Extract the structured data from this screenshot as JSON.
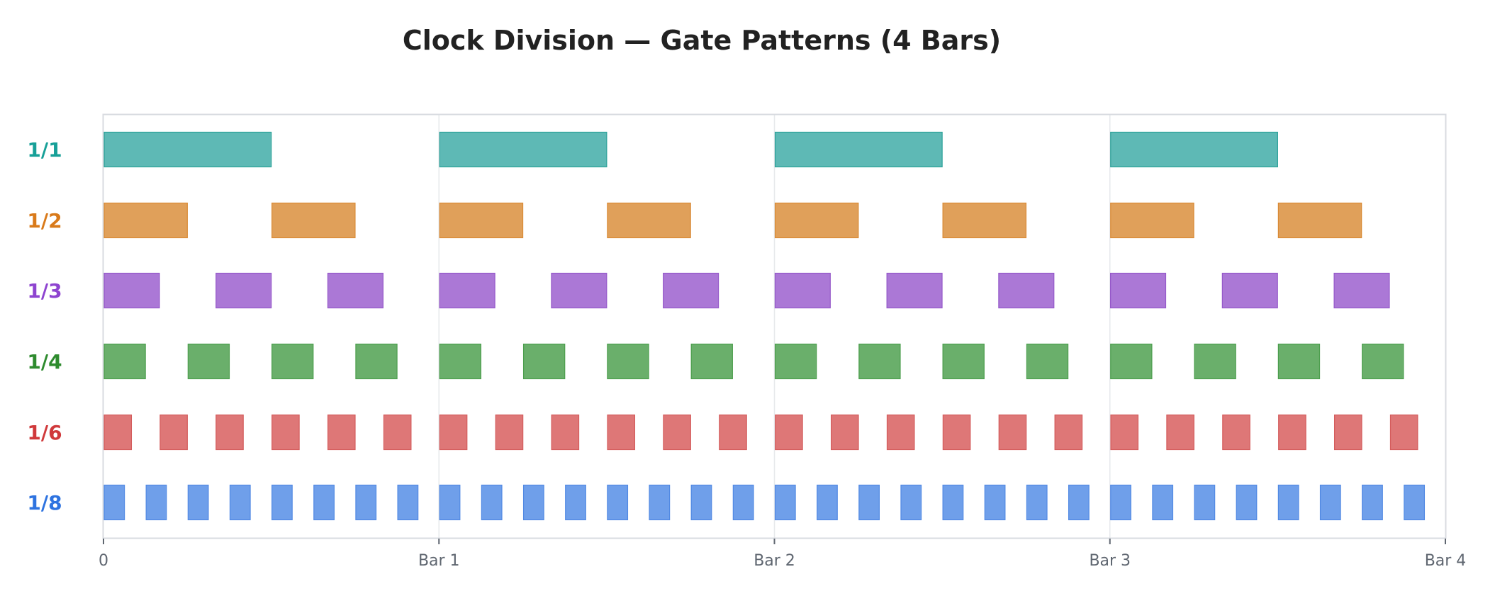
{
  "chart_data": {
    "type": "gantt-gate",
    "title": "Clock Division — Gate Patterns (4 Bars)",
    "xlabel": "",
    "ylabel": "",
    "xlim": [
      0,
      4
    ],
    "x_ticks": [
      0,
      1,
      2,
      3,
      4
    ],
    "x_tick_labels": [
      "0",
      "Bar 1",
      "Bar 2",
      "Bar 3",
      "Bar 4"
    ],
    "grid": "vertical at bar lines",
    "duty_cycle": 0.5,
    "series": [
      {
        "name": "1/1",
        "period_bars": 1,
        "gate_length_bars": 0.5,
        "color": "#5eb9b5",
        "stroke": "#2aa198",
        "label_color": "#17a098"
      },
      {
        "name": "1/2",
        "period_bars": 0.5,
        "gate_length_bars": 0.25,
        "color": "#e0a05a",
        "stroke": "#d98a35",
        "label_color": "#d97a1a"
      },
      {
        "name": "1/3",
        "period_bars": 0.3333,
        "gate_length_bars": 0.1667,
        "color": "#ab78d6",
        "stroke": "#9558c9",
        "label_color": "#8e44d0"
      },
      {
        "name": "1/4",
        "period_bars": 0.25,
        "gate_length_bars": 0.125,
        "color": "#6aaf6b",
        "stroke": "#4c9e4d",
        "label_color": "#2e8b2e"
      },
      {
        "name": "1/6",
        "period_bars": 0.1667,
        "gate_length_bars": 0.0833,
        "color": "#de7777",
        "stroke": "#d45c5c",
        "label_color": "#d0393b"
      },
      {
        "name": "1/8",
        "period_bars": 0.125,
        "gate_length_bars": 0.0625,
        "color": "#6f9fea",
        "stroke": "#5189e3",
        "label_color": "#2e73e0"
      }
    ]
  }
}
